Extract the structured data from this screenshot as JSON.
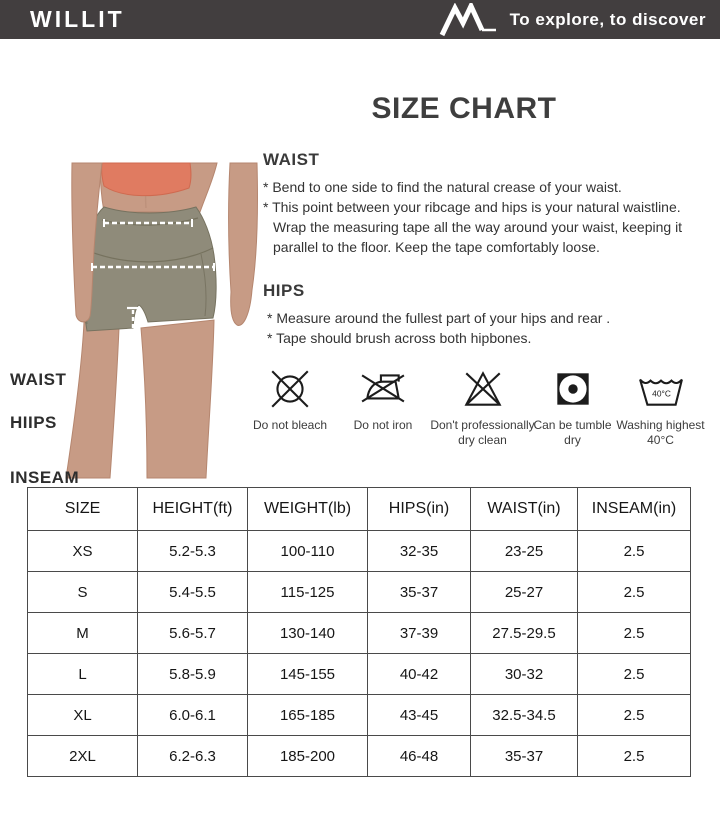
{
  "header": {
    "brand": "WILLIT",
    "tagline": "To explore, to discover"
  },
  "page_title": "SIZE CHART",
  "figure_labels": {
    "waist": "WAIST",
    "hips": "HIIPS",
    "inseam": "INSEAM"
  },
  "sections": [
    {
      "heading": "WAIST",
      "bullets": [
        "* Bend to one side to find the natural crease of your waist.",
        "* This point between your ribcage and hips is your natural waistline. Wrap the measuring tape all the way around your waist, keeping it parallel to the floor. Keep the tape comfortably loose."
      ]
    },
    {
      "heading": "HIPS",
      "bullets": [
        "* Measure around the fullest part of your hips and rear .",
        "* Tape should brush across both hipbones."
      ]
    }
  ],
  "care_icons": [
    {
      "name": "do-not-bleach-icon",
      "label": "Do not bleach"
    },
    {
      "name": "do-not-iron-icon",
      "label": "Do not iron"
    },
    {
      "name": "dont-professionally-dry-clean-icon",
      "label": "Don't professionally dry clean"
    },
    {
      "name": "tumble-dry-icon",
      "label": "Can be tumble dry"
    },
    {
      "name": "washing-40c-icon",
      "label": "Washing highest 40°C",
      "badge": "40°C"
    }
  ],
  "size_chart": {
    "columns": [
      "SIZE",
      "HEIGHT(ft)",
      "WEIGHT(lb)",
      "HIPS(in)",
      "WAIST(in)",
      "INSEAM(in)"
    ],
    "rows": [
      [
        "XS",
        "5.2-5.3",
        "100-110",
        "32-35",
        "23-25",
        "2.5"
      ],
      [
        "S",
        "5.4-5.5",
        "115-125",
        "35-37",
        "25-27",
        "2.5"
      ],
      [
        "M",
        "5.6-5.7",
        "130-140",
        "37-39",
        "27.5-29.5",
        "2.5"
      ],
      [
        "L",
        "5.8-5.9",
        "145-155",
        "40-42",
        "30-32",
        "2.5"
      ],
      [
        "XL",
        "6.0-6.1",
        "165-185",
        "43-45",
        "32.5-34.5",
        "2.5"
      ],
      [
        "2XL",
        "6.2-6.3",
        "185-200",
        "46-48",
        "35-37",
        "2.5"
      ]
    ]
  },
  "colors": {
    "header_bg": "#423e3f",
    "skin": "#c79b85",
    "crop_top": "#e07b61",
    "shorts": "#8f8b7a"
  }
}
